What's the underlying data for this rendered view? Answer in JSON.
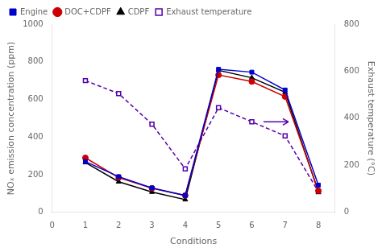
{
  "chart_data": {
    "type": "line",
    "x": [
      1,
      2,
      3,
      4,
      5,
      6,
      7,
      8
    ],
    "xlabel": "Conditions",
    "ylabel": "NOₓ emission concentration (ppm)",
    "y2label": "Exhaust temperature (°C)",
    "xlim": [
      0,
      8.5
    ],
    "xticks": [
      0,
      1,
      2,
      3,
      4,
      5,
      6,
      7,
      8
    ],
    "ylim": [
      0,
      1000
    ],
    "yticks": [
      0,
      200,
      400,
      600,
      800,
      1000
    ],
    "y2lim": [
      0,
      800
    ],
    "y2ticks": [
      0,
      200,
      400,
      600,
      800
    ],
    "grid": false,
    "legend": "upper left",
    "series": [
      {
        "name": "Engine",
        "color": "#0000cc",
        "marker": "square",
        "line_style": "solid",
        "values": [
          270,
          190,
          130,
          90,
          760,
          745,
          650,
          145
        ]
      },
      {
        "name": "DOC+CDPF",
        "color": "#cc0000",
        "marker": "circle",
        "line_style": "solid",
        "values": [
          290,
          185,
          128,
          90,
          730,
          695,
          615,
          115
        ]
      },
      {
        "name": "CDPF",
        "color": "#000000",
        "marker": "triangle",
        "line_style": "solid",
        "values": [
          265,
          163,
          108,
          68,
          755,
          715,
          638,
          108
        ]
      },
      {
        "name": "Exhaust temperature",
        "color": "#5500aa",
        "marker": "open_square",
        "line_style": "dashed",
        "axis": "y2",
        "values": [
          560,
          505,
          375,
          185,
          445,
          385,
          325,
          88
        ]
      }
    ],
    "annotations": [
      {
        "type": "arrow",
        "x_start": 6.35,
        "x_end": 7.1,
        "y": 385,
        "axis": "y2",
        "color": "#5500aa"
      }
    ]
  }
}
